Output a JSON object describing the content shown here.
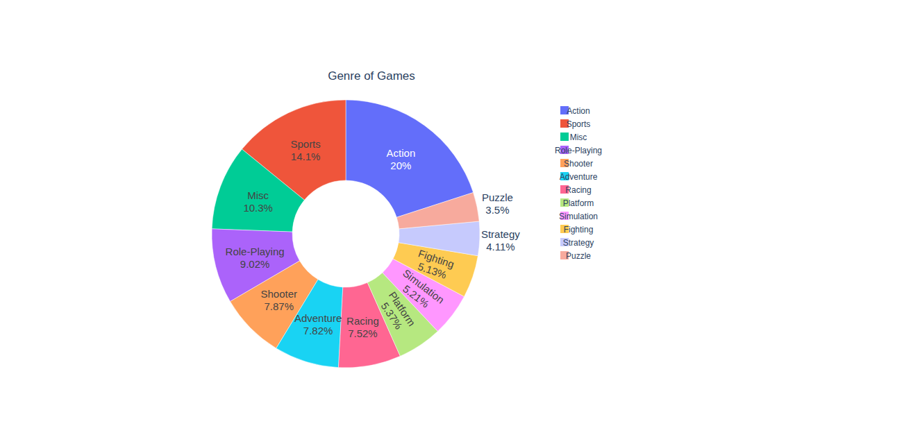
{
  "chart_data": {
    "type": "donut",
    "title": "Genre of Games",
    "categories": [
      "Action",
      "Sports",
      "Misc",
      "Role-Playing",
      "Shooter",
      "Adventure",
      "Racing",
      "Platform",
      "Simulation",
      "Fighting",
      "Strategy",
      "Puzzle"
    ],
    "values": [
      20,
      14.1,
      10.3,
      9.02,
      7.87,
      7.82,
      7.52,
      5.37,
      5.21,
      5.13,
      4.11,
      3.5
    ],
    "value_labels": [
      "20%",
      "14.1%",
      "10.3%",
      "9.02%",
      "7.87%",
      "7.82%",
      "7.52%",
      "5.37%",
      "5.21%",
      "5.13%",
      "4.11%",
      "3.5%"
    ],
    "colors": [
      "#636efa",
      "#ef553b",
      "#00cc96",
      "#ab63fa",
      "#ffa15a",
      "#19d3f3",
      "#ff6692",
      "#b6e880",
      "#ff97ff",
      "#fecb52",
      "#c6cafd",
      "#f7aa9d"
    ],
    "data_labels": true,
    "legend": "top-right"
  }
}
